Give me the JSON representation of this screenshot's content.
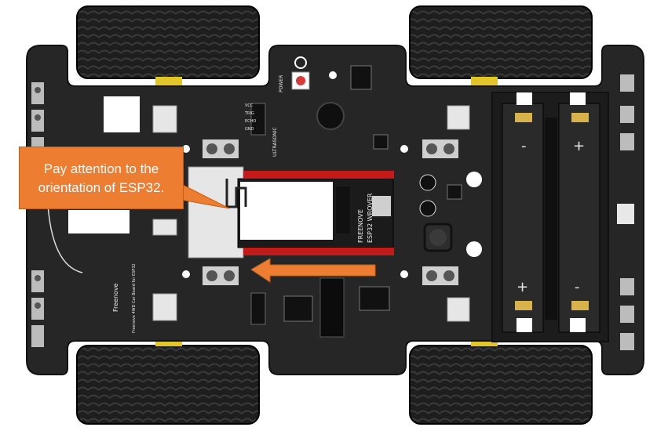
{
  "callout": {
    "line1": "Pay attention to the",
    "line2": "orientation of ESP32."
  },
  "board_labels": {
    "ultrasonic": "ULTRASONIC",
    "freenove": "FREENOVE",
    "esp32_wrover": "ESP32 WROVER",
    "brand": "Freenove",
    "board_name": "Freenove 4WD Car Board for ESP32",
    "power": "POWER",
    "vcc": "VCC",
    "trig": "TRIG",
    "echo": "ECHO",
    "gnd": "GND",
    "plus": "+",
    "minus": "-"
  },
  "colors": {
    "board": "#262626",
    "tire": "#1b1b1b",
    "callout": "#ed7d31",
    "arrow": "#ed7d31",
    "battery_contact": "#d8b24a"
  }
}
